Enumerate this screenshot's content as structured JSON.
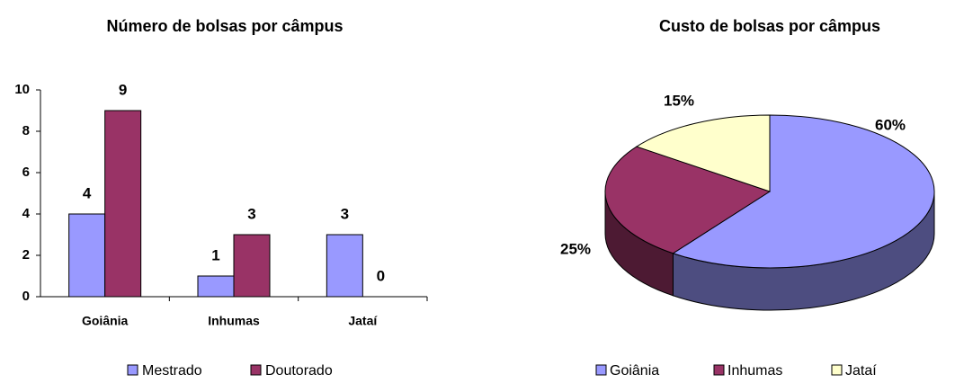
{
  "chart_data": [
    {
      "type": "bar",
      "title": "Número de bolsas por câmpus",
      "categories": [
        "Goiânia",
        "Inhumas",
        "Jataí"
      ],
      "series": [
        {
          "name": "Mestrado",
          "color": "#9999ff",
          "values": [
            4,
            1,
            3
          ]
        },
        {
          "name": "Doutorado",
          "color": "#993366",
          "values": [
            9,
            3,
            0
          ]
        }
      ],
      "ylim": [
        0,
        10
      ],
      "yticks": [
        0,
        2,
        4,
        6,
        8,
        10
      ],
      "legend": "bottom"
    },
    {
      "type": "pie",
      "title": "Custo de bolsas por câmpus",
      "categories": [
        "Goiânia",
        "Inhumas",
        "Jataí"
      ],
      "values": [
        60,
        25,
        15
      ],
      "value_labels": [
        "60%",
        "25%",
        "15%"
      ],
      "colors": [
        "#9999ff",
        "#993366",
        "#ffffcc"
      ],
      "legend": "bottom"
    }
  ]
}
